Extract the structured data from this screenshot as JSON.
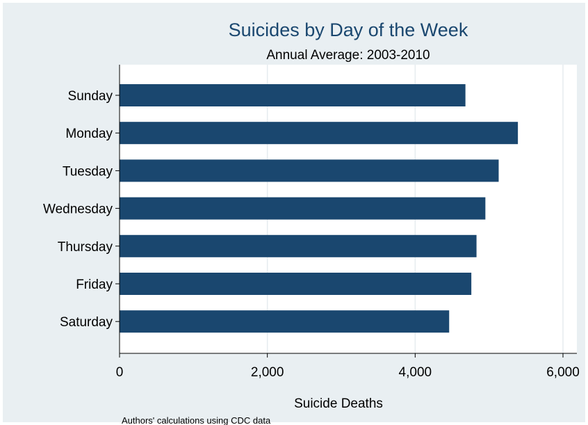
{
  "chart_data": {
    "type": "bar",
    "orientation": "horizontal",
    "title": "Suicides by Day of the Week",
    "subtitle": "Annual Average: 2003-2010",
    "xlabel": "Suicide Deaths",
    "ylabel": "",
    "note": "Authors' calculations using CDC data",
    "categories": [
      "Sunday",
      "Monday",
      "Tuesday",
      "Wednesday",
      "Thursday",
      "Friday",
      "Saturday"
    ],
    "values": [
      4680,
      5390,
      5130,
      4950,
      4830,
      4760,
      4460
    ],
    "xlim": [
      0,
      6000
    ],
    "xticks": [
      0,
      2000,
      4000,
      6000
    ],
    "xtick_labels": [
      "0",
      "2,000",
      "4,000",
      "6,000"
    ],
    "grid": true,
    "bar_color": "#1a476f",
    "title_color": "#1a476f",
    "background_color": "#e9eff2",
    "plot_background_color": "#ffffff"
  }
}
